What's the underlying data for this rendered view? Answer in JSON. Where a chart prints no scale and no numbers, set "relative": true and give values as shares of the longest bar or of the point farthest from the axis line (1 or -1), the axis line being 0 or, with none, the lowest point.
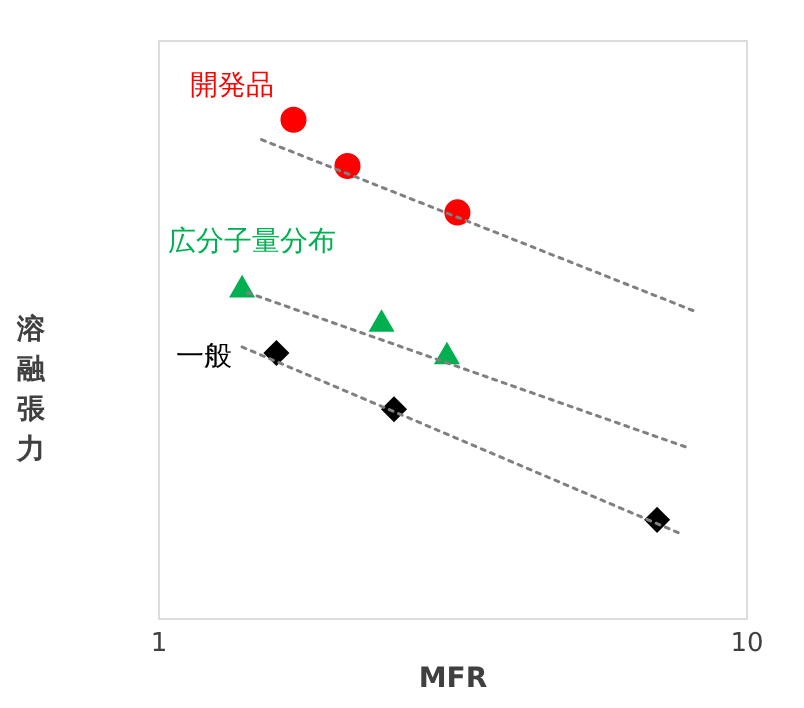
{
  "chart_data": {
    "type": "scatter",
    "relative": true,
    "xlabel": "MFR",
    "ylabel": "溶融張力",
    "log": "x",
    "xlim": [
      1,
      10
    ],
    "xticks": [
      1,
      10
    ],
    "grid": false,
    "series": [
      {
        "name": "開発品",
        "color": "#ff0000",
        "marker": "circle",
        "x": [
          1.7,
          2.1,
          3.23
        ],
        "values": [
          1,
          0.907,
          0.814
        ]
      },
      {
        "name": "広分子量分布",
        "color": "#00b050",
        "marker": "triangle",
        "x": [
          1.39,
          2.4,
          3.1
        ],
        "values": [
          0.666,
          0.597,
          0.532
        ]
      },
      {
        "name": "一般",
        "color": "#000000",
        "marker": "diamond",
        "x": [
          1.59,
          2.52,
          7.06
        ],
        "values": [
          0.532,
          0.419,
          0.197
        ]
      },
      {
        "type": "line",
        "color": "#808080",
        "line_style": "dotted",
        "marker": "none",
        "x": [
          1.5,
          8.29
        ],
        "values": [
          0.96,
          0.613
        ]
      },
      {
        "type": "line",
        "color": "#808080",
        "line_style": "dotted",
        "marker": "none",
        "x": [
          1.42,
          7.91
        ],
        "values": [
          0.653,
          0.343
        ]
      },
      {
        "type": "line",
        "color": "#808080",
        "line_style": "dotted",
        "marker": "none",
        "x": [
          1.39,
          7.75
        ],
        "values": [
          0.544,
          0.169
        ]
      }
    ]
  }
}
